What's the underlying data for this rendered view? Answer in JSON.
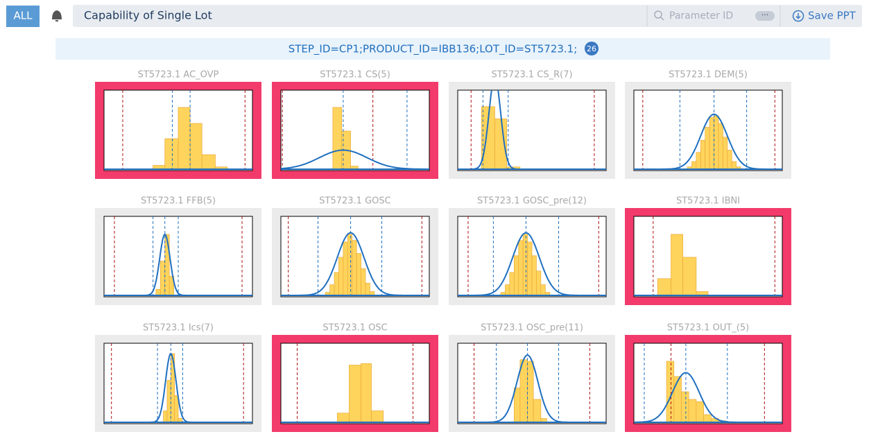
{
  "toolbar": {
    "all": "ALL",
    "title": "Capability of Single Lot",
    "search_placeholder": "Parameter ID",
    "more": "···",
    "save": "Save PPT"
  },
  "filter": {
    "text": "STEP_ID=CP1;PRODUCT_ID=IBB136;LOT_ID=ST5723.1;",
    "count": 26
  },
  "panels": [
    {
      "title": "ST5723.1 AC_OVP",
      "alert": true,
      "lsl": 12.6,
      "usl": 95,
      "lcl": 46,
      "ucl": 58,
      "bins": [
        33,
        41,
        50,
        58,
        66,
        75,
        83
      ],
      "counts": [
        5,
        40,
        81,
        60,
        19,
        3
      ]
    },
    {
      "title": "ST5723.1 CS(5)",
      "alert": true,
      "lsl": 1,
      "usl": 62,
      "lcl": 42,
      "ucl": 85,
      "bins": [
        35,
        41,
        47,
        52
      ],
      "counts": [
        81,
        50,
        4
      ],
      "curve": {
        "mean": 42,
        "sd": 16,
        "peak": 25
      }
    },
    {
      "title": "ST5723.1 CS_R(7)",
      "alert": false,
      "lsl": 9,
      "usl": 92,
      "lcl": 17,
      "ucl": 34,
      "bins": [
        16,
        25,
        33,
        42
      ],
      "counts": [
        82,
        66,
        3
      ],
      "curve": {
        "mean": 25,
        "sd": 4,
        "peak": 120
      }
    },
    {
      "title": "ST5723.1 DEM(5)",
      "alert": false,
      "lsl": 6,
      "usl": 95,
      "lcl": 31,
      "ucl": 76,
      "center": 54,
      "bins": [
        36,
        39,
        42,
        45,
        48,
        51,
        54,
        57,
        60,
        63,
        66,
        69,
        72
      ],
      "counts": [
        3,
        10,
        22,
        38,
        55,
        68,
        70,
        60,
        42,
        25,
        10,
        3
      ],
      "curve": {
        "mean": 54,
        "sd": 9,
        "peak": 72
      }
    },
    {
      "title": "ST5723.1 FFB(5)",
      "alert": false,
      "lsl": 7,
      "usl": 93,
      "lcl": 33,
      "ucl": 50,
      "center": 41,
      "bins": [
        35,
        38,
        41,
        44,
        47
      ],
      "counts": [
        8,
        45,
        80,
        25
      ],
      "curve": {
        "mean": 41,
        "sd": 3.5,
        "peak": 80
      }
    },
    {
      "title": "ST5723.1 GOSC",
      "alert": false,
      "lsl": 5,
      "usl": 95,
      "lcl": 25,
      "ucl": 68,
      "center": 47,
      "bins": [
        30,
        33,
        36,
        39,
        42,
        45,
        48,
        51,
        54,
        57,
        60,
        63
      ],
      "counts": [
        4,
        14,
        30,
        50,
        70,
        80,
        72,
        55,
        35,
        16,
        5
      ],
      "curve": {
        "mean": 47,
        "sd": 9,
        "peak": 82
      }
    },
    {
      "title": "ST5723.1 GOSC_pre(12)",
      "alert": false,
      "lsl": 7,
      "usl": 95,
      "lcl": 24,
      "ucl": 68,
      "center": 46,
      "bins": [
        29,
        32,
        35,
        38,
        41,
        44,
        47,
        50,
        53,
        56,
        59,
        62
      ],
      "counts": [
        4,
        14,
        30,
        52,
        72,
        80,
        70,
        52,
        32,
        14,
        4
      ],
      "curve": {
        "mean": 46,
        "sd": 9,
        "peak": 82
      }
    },
    {
      "title": "ST5723.1 IBNI",
      "alert": true,
      "lsl": 13,
      "usl": 95,
      "bins": [
        16,
        25,
        33,
        42,
        50
      ],
      "counts": [
        22,
        80,
        50,
        5
      ]
    },
    {
      "title": "ST5723.1 Ics(7)",
      "alert": false,
      "lsl": 5,
      "usl": 94,
      "lcl": 36,
      "ucl": 53,
      "center": 45,
      "bins": [
        40,
        42.5,
        45,
        47.5,
        50,
        52.5
      ],
      "counts": [
        15,
        55,
        90,
        35,
        5
      ],
      "curve": {
        "mean": 45,
        "sd": 3.5,
        "peak": 90
      }
    },
    {
      "title": "ST5723.1 OSC",
      "alert": true,
      "lsl": 11,
      "usl": 89,
      "bins": [
        38,
        46,
        54,
        61,
        69
      ],
      "counts": [
        12,
        75,
        77,
        15
      ]
    },
    {
      "title": "ST5723.1 OSC_pre(11)",
      "alert": false,
      "lsl": 11,
      "usl": 89,
      "lcl": 26,
      "ucl": 68,
      "center": 47,
      "bins": [
        38,
        42,
        47,
        51,
        56,
        60
      ],
      "counts": [
        45,
        82,
        80,
        30,
        5
      ],
      "curve": {
        "mean": 47,
        "sd": 7,
        "peak": 88
      }
    },
    {
      "title": "ST5723.1 OUT_(5)",
      "alert": true,
      "lsl": 25,
      "usl": 88,
      "lcl": 7,
      "ucl": 63,
      "center": 35,
      "bins": [
        22,
        27,
        32,
        37,
        42,
        47,
        52,
        57,
        62
      ],
      "counts": [
        80,
        60,
        40,
        30,
        27,
        10,
        5,
        2
      ],
      "curve": {
        "mean": 35,
        "sd": 9,
        "peak": 65
      }
    }
  ]
}
